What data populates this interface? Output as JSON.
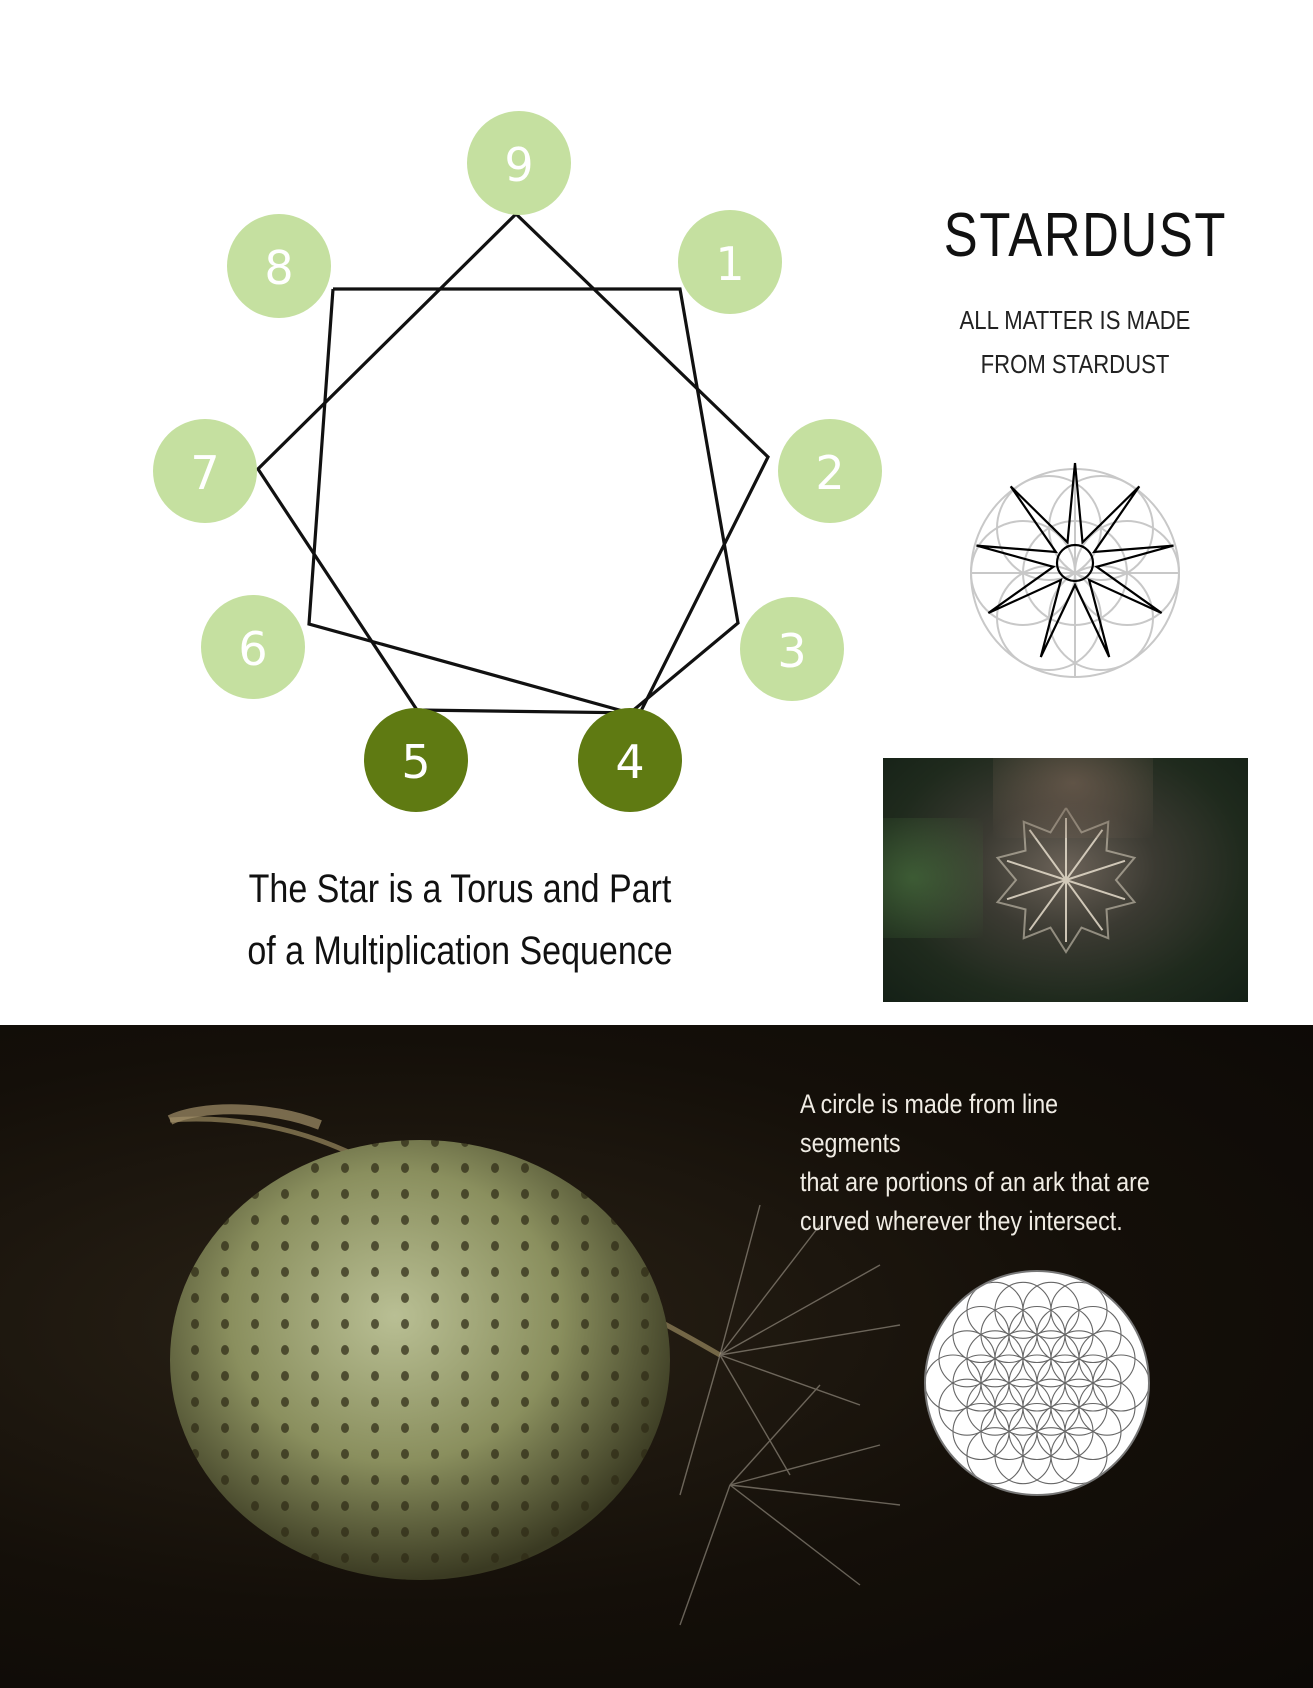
{
  "diagram": {
    "numbers": [
      "9",
      "1",
      "2",
      "3",
      "4",
      "5",
      "6",
      "7",
      "8"
    ],
    "light_color": "#c5e0a0",
    "dark_color": "#5f7a12",
    "highlighted": [
      "4",
      "5"
    ]
  },
  "header": {
    "title": "STARDUST",
    "subtitle": "ALL MATTER IS MADE\nFROM  STARDUST"
  },
  "caption": {
    "text": "The Star is a Torus and Part of a Multiplication Sequence"
  },
  "dark_section": {
    "text": "A circle is made from line segments\nthat are portions of an ark that are\ncurved wherever they intersect."
  },
  "icons": {
    "mini_star": "nine-point-star-in-flower-of-life-icon",
    "flower": "flower-of-life-icon"
  }
}
